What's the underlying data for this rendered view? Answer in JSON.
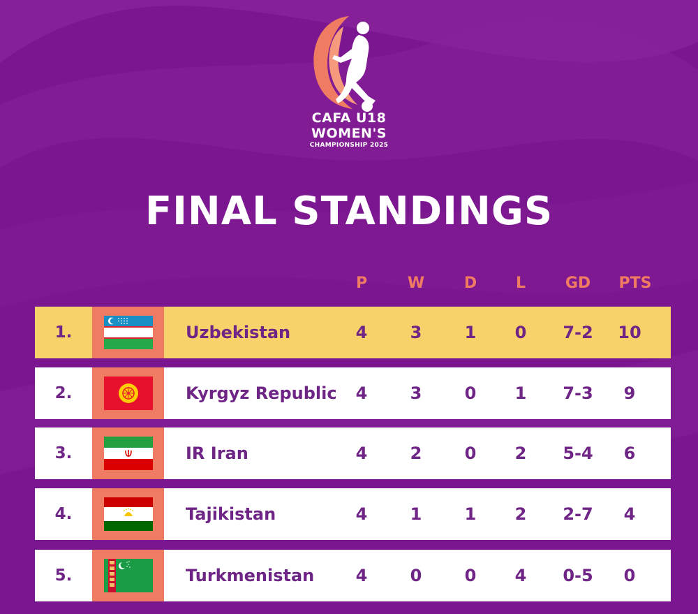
{
  "logo": {
    "line1": "CAFA U18",
    "line2": "WOMEN'S",
    "line3": "CHAMPIONSHIP 2025"
  },
  "title": "FINAL STANDINGS",
  "columns": [
    "P",
    "W",
    "D",
    "L",
    "GD",
    "PTS"
  ],
  "rows": [
    {
      "rank": "1.",
      "team": "Uzbekistan",
      "flag": "uzbekistan-flag-icon",
      "p": "4",
      "w": "3",
      "d": "1",
      "l": "0",
      "gd": "7-2",
      "pts": "10"
    },
    {
      "rank": "2.",
      "team": "Kyrgyz Republic",
      "flag": "kyrgyzstan-flag-icon",
      "p": "4",
      "w": "3",
      "d": "0",
      "l": "1",
      "gd": "7-3",
      "pts": "9"
    },
    {
      "rank": "3.",
      "team": "IR Iran",
      "flag": "iran-flag-icon",
      "p": "4",
      "w": "2",
      "d": "0",
      "l": "2",
      "gd": "5-4",
      "pts": "6"
    },
    {
      "rank": "4.",
      "team": "Tajikistan",
      "flag": "tajikistan-flag-icon",
      "p": "4",
      "w": "1",
      "d": "1",
      "l": "2",
      "gd": "2-7",
      "pts": "4"
    },
    {
      "rank": "5.",
      "team": "Turkmenistan",
      "flag": "turkmenistan-flag-icon",
      "p": "4",
      "w": "0",
      "d": "0",
      "l": "4",
      "gd": "0-5",
      "pts": "0"
    }
  ],
  "colors": {
    "background": "#7a1690",
    "highlight_row": "#f7d26a",
    "row": "#ffffff",
    "accent": "#f07b63",
    "text": "#6f2586"
  }
}
